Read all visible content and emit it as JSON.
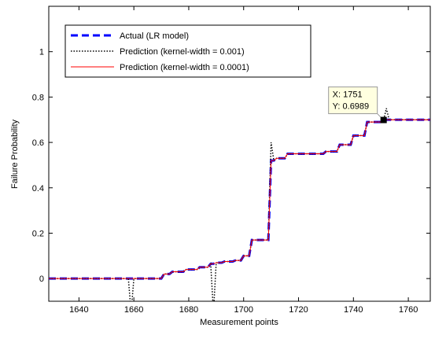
{
  "chart_data": {
    "type": "line",
    "xlabel": "Measurement points",
    "ylabel": "Failure Probability",
    "x": [
      1629,
      1658,
      1659,
      1660,
      1670,
      1671,
      1673,
      1674,
      1678,
      1679,
      1683,
      1684,
      1687,
      1688,
      1689,
      1690,
      1692,
      1693,
      1696,
      1697,
      1699,
      1700,
      1702,
      1703,
      1706,
      1707,
      1709,
      1710,
      1711,
      1712,
      1715,
      1716,
      1729,
      1730,
      1734,
      1735,
      1739,
      1740,
      1744,
      1745,
      1750,
      1751,
      1752,
      1753,
      1768
    ],
    "series": [
      {
        "name": "Actual (LR model)",
        "color": "#0000ff",
        "style": "dashed",
        "values": [
          0,
          0,
          0,
          0,
          0,
          0.02,
          0.02,
          0.03,
          0.03,
          0.04,
          0.04,
          0.05,
          0.05,
          0.065,
          0.065,
          0.07,
          0.07,
          0.075,
          0.075,
          0.08,
          0.08,
          0.1,
          0.1,
          0.17,
          0.17,
          0.17,
          0.17,
          0.52,
          0.52,
          0.53,
          0.53,
          0.55,
          0.55,
          0.56,
          0.56,
          0.59,
          0.59,
          0.63,
          0.63,
          0.69,
          0.69,
          0.6989,
          0.7,
          0.7,
          0.7
        ]
      },
      {
        "name": "Prediction (kernel-width = 0.001)",
        "color": "#000000",
        "style": "dotted",
        "values": [
          0,
          0,
          -0.15,
          0,
          0,
          0.02,
          0.02,
          0.03,
          0.03,
          0.04,
          0.04,
          0.05,
          0.05,
          0.065,
          -0.15,
          0.07,
          0.07,
          0.075,
          0.075,
          0.08,
          0.08,
          0.1,
          0.1,
          0.17,
          0.17,
          0.17,
          0.17,
          0.6,
          0.52,
          0.53,
          0.53,
          0.55,
          0.55,
          0.56,
          0.56,
          0.59,
          0.59,
          0.63,
          0.63,
          0.69,
          0.69,
          0.6989,
          0.75,
          0.7,
          0.7
        ]
      },
      {
        "name": "Prediction (kernel-width = 0.0001)",
        "color": "#ff0000",
        "style": "solid",
        "values": [
          0,
          0,
          0,
          0,
          0,
          0.02,
          0.02,
          0.03,
          0.03,
          0.04,
          0.04,
          0.05,
          0.05,
          0.065,
          0.065,
          0.07,
          0.07,
          0.075,
          0.075,
          0.08,
          0.08,
          0.1,
          0.1,
          0.17,
          0.17,
          0.17,
          0.17,
          0.52,
          0.52,
          0.53,
          0.53,
          0.55,
          0.55,
          0.56,
          0.56,
          0.59,
          0.59,
          0.63,
          0.63,
          0.69,
          0.69,
          0.6989,
          0.7,
          0.7,
          0.7
        ]
      }
    ],
    "xlim": [
      1629,
      1768
    ],
    "xticks": [
      1640,
      1660,
      1680,
      1700,
      1720,
      1740,
      1760
    ],
    "ylim": [
      -0.1,
      1.2
    ],
    "yticks": [
      0,
      0.2,
      0.4,
      0.6,
      0.8,
      1
    ],
    "legend": "upper left",
    "datatip": {
      "x": 1751,
      "y": 0.6989,
      "label_x": "X: 1751",
      "label_y": "Y: 0.6989"
    }
  }
}
